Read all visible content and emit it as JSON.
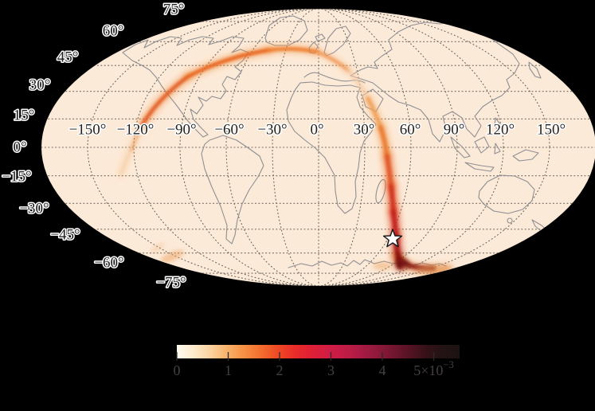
{
  "page": {
    "background_color": "#000000"
  },
  "map": {
    "projection_label": "mollweide",
    "face_color": "#fcead8",
    "coast_color": "#8f8f93",
    "grid_color": "#4a4540",
    "label_color": "#1f1f1f",
    "label_halo_color": "#ffffff",
    "latitude_labels": [
      "75°",
      "60°",
      "45°",
      "30°",
      "15°",
      "0°",
      "−15°",
      "−30°",
      "−45°",
      "−60°",
      "−75°"
    ],
    "longitude_labels": [
      "−150°",
      "−120°",
      "−90°",
      "−60°",
      "−30°",
      "0°",
      "30°",
      "60°",
      "90°",
      "120°",
      "150°"
    ],
    "star_marker": {
      "shape": "star",
      "fill_color": "#ffffff",
      "edge_color": "#151515"
    }
  },
  "colorbar": {
    "tick_labels": [
      "0",
      "1",
      "2",
      "3",
      "4"
    ],
    "last_tick_base": "5×10",
    "last_tick_exponent": "−3",
    "label_color": "#45403e",
    "gradient_stops": [
      "#fefaf1",
      "#fdeccd",
      "#fbd2a0",
      "#f9b36c",
      "#f69245",
      "#f3702e",
      "#ef4b25",
      "#e92e29",
      "#e02035",
      "#d41d43",
      "#c31c47",
      "#ab1b43",
      "#90193c",
      "#731630",
      "#541323",
      "#351117",
      "#221314",
      "#1d1313"
    ]
  },
  "chart_data": {
    "type": "heatmap",
    "subtype": "sky-localization-probability-map",
    "projection": "mollweide",
    "grid": "dotted graticule, meridians every 30°, parallels every 15°",
    "lat_ticks_deg": [
      75,
      60,
      45,
      30,
      15,
      0,
      -15,
      -30,
      -45,
      -60,
      -75
    ],
    "lon_ticks_deg": [
      -150,
      -120,
      -90,
      -60,
      -30,
      0,
      30,
      60,
      90,
      120,
      150
    ],
    "colorbar": {
      "min": 0,
      "max": 0.0055,
      "tick_values": [
        0,
        0.001,
        0.002,
        0.003,
        0.004,
        0.005
      ],
      "tick_labels": [
        "0",
        "1",
        "2",
        "3",
        "4",
        "5×10⁻³"
      ],
      "orientation": "horizontal",
      "position": "bottom-center"
    },
    "star_marker_lon_lat_deg": [
      65,
      -51
    ],
    "band_description": "great-circle ring of probability density: faint tail entering near (−131°,−14°), strong orange arc rising through (−90°,30°) to a crest near (−46°,54°), fading over Europe, strengthening again across east Africa into a dense nearly vertical dark-red segment near 50–80°E from −20° down to −65°, peaking just south of the star marker and smearing along the Antarctic coast",
    "max_density_region_lon_lat_deg": [
      70,
      -62
    ]
  }
}
